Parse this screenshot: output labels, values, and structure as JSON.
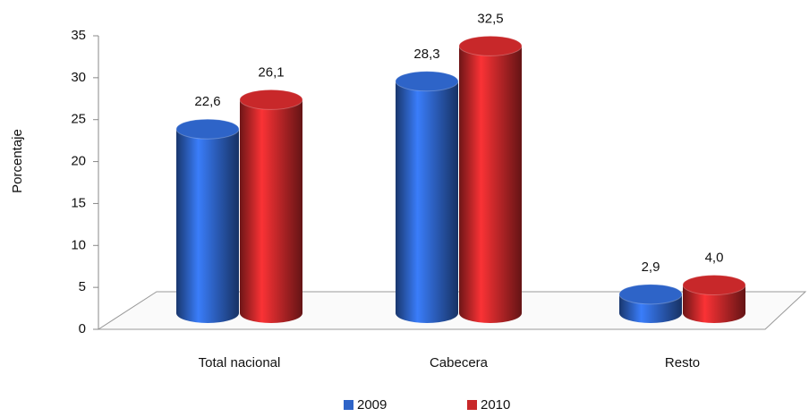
{
  "chart_data": {
    "type": "bar",
    "y_label": "Porcentaje",
    "categories": [
      "Total nacional",
      "Cabecera",
      "Resto"
    ],
    "series": [
      {
        "name": "2009",
        "color": "#2e64c8",
        "values": [
          22.6,
          28.3,
          2.9
        ],
        "value_labels": [
          "22,6",
          "28,3",
          "2,9"
        ]
      },
      {
        "name": "2010",
        "color": "#c8282a",
        "values": [
          26.1,
          32.5,
          4.0
        ],
        "value_labels": [
          "26,1",
          "32,5",
          "4,0"
        ]
      }
    ],
    "ylim": [
      0,
      35
    ],
    "yticks": [
      0,
      5,
      10,
      15,
      20,
      25,
      30,
      35
    ],
    "legend": "bottom"
  }
}
